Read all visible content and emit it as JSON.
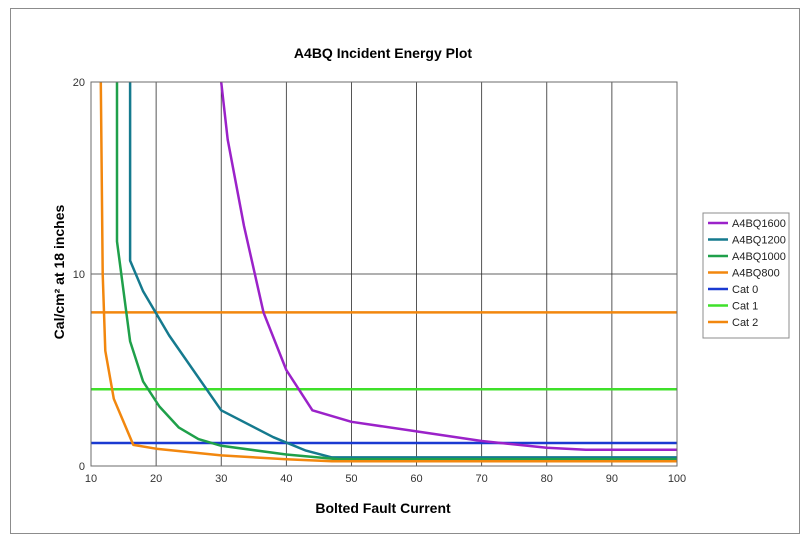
{
  "chart_data": {
    "type": "line",
    "title": "A4BQ Incident Energy Plot",
    "xlabel": "Bolted Fault Current",
    "ylabel": "Cal/cm² at 18 inches",
    "xlim": [
      10,
      100
    ],
    "ylim": [
      0,
      20
    ],
    "x_ticks": [
      "10",
      "20",
      "30",
      "40",
      "50",
      "60",
      "70",
      "80",
      "90",
      "100"
    ],
    "y_ticks": [
      "0",
      "10",
      "20"
    ],
    "grid": "vertical lines every 10; horizontal at 10 and 20",
    "legend_position": "right",
    "series": [
      {
        "name": "A4BQ1600",
        "color": "#9b22c9",
        "points": [
          [
            30,
            20
          ],
          [
            31,
            17
          ],
          [
            33.5,
            12.5
          ],
          [
            36.5,
            8
          ],
          [
            40,
            5
          ],
          [
            44,
            2.9
          ],
          [
            50,
            2.3
          ],
          [
            60,
            1.8
          ],
          [
            70,
            1.3
          ],
          [
            80,
            0.95
          ],
          [
            86,
            0.85
          ],
          [
            100,
            0.85
          ]
        ]
      },
      {
        "name": "A4BQ1200",
        "color": "#157a8e",
        "points": [
          [
            16,
            20
          ],
          [
            16,
            10.7
          ],
          [
            18,
            9.1
          ],
          [
            22,
            6.8
          ],
          [
            30,
            2.9
          ],
          [
            38,
            1.5
          ],
          [
            43,
            0.8
          ],
          [
            47,
            0.45
          ],
          [
            100,
            0.45
          ]
        ]
      },
      {
        "name": "A4BQ1000",
        "color": "#1fa04a",
        "points": [
          [
            14,
            20
          ],
          [
            14,
            11.7
          ],
          [
            16,
            6.5
          ],
          [
            18,
            4.4
          ],
          [
            20.5,
            3.1
          ],
          [
            23.5,
            2
          ],
          [
            26.5,
            1.4
          ],
          [
            30,
            1.05
          ],
          [
            40,
            0.6
          ],
          [
            48,
            0.35
          ],
          [
            100,
            0.35
          ]
        ]
      },
      {
        "name": "A4BQ800",
        "color": "#f2870e",
        "points": [
          [
            11.5,
            20
          ],
          [
            11.8,
            10
          ],
          [
            12.2,
            6
          ],
          [
            13.5,
            3.5
          ],
          [
            16.5,
            1.1
          ],
          [
            20,
            0.9
          ],
          [
            30,
            0.55
          ],
          [
            40,
            0.35
          ],
          [
            47,
            0.25
          ],
          [
            100,
            0.25
          ]
        ]
      },
      {
        "name": "Cat 0",
        "color": "#1a3ad1",
        "points": [
          [
            10,
            1.2
          ],
          [
            100,
            1.2
          ]
        ]
      },
      {
        "name": "Cat 1",
        "color": "#3fe02a",
        "points": [
          [
            10,
            4
          ],
          [
            100,
            4
          ]
        ]
      },
      {
        "name": "Cat 2",
        "color": "#f2870e",
        "points": [
          [
            10,
            8
          ],
          [
            100,
            8
          ]
        ]
      }
    ]
  }
}
